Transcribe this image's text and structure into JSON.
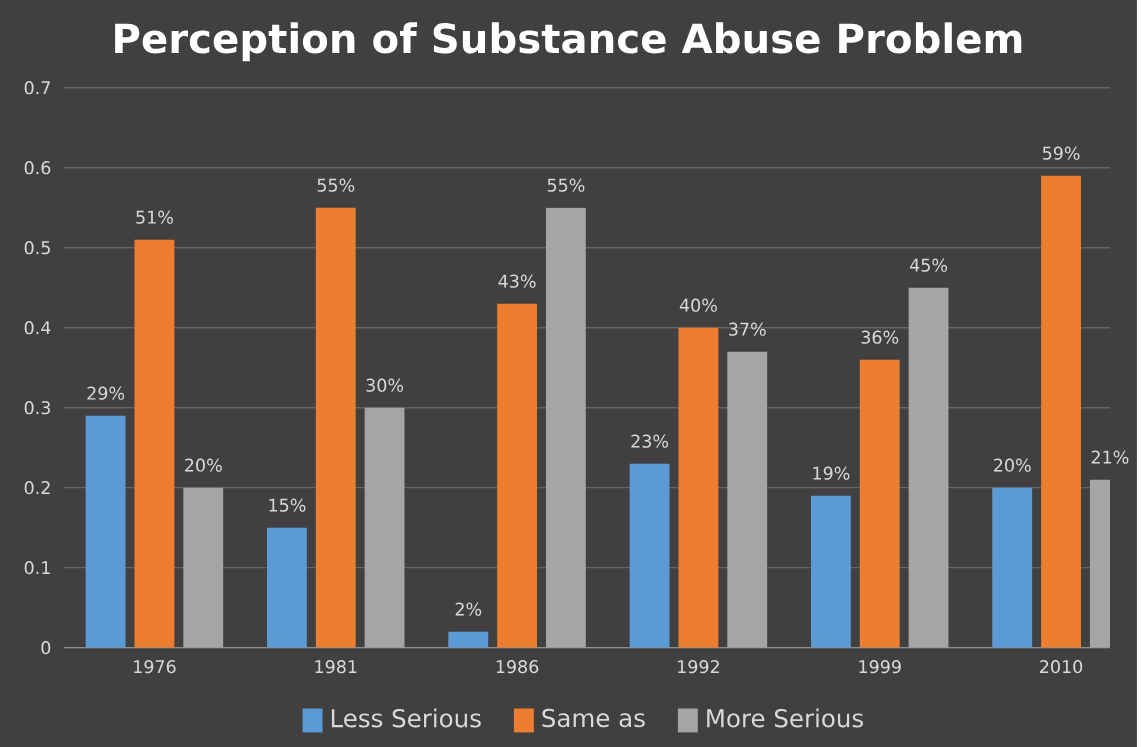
{
  "chart_data": {
    "type": "bar",
    "title": "Perception of Substance Abuse Problem",
    "categories": [
      "1976",
      "1981",
      "1986",
      "1992",
      "1999",
      "2010"
    ],
    "series": [
      {
        "name": "Less Serious",
        "color": "#5b9bd5",
        "values": [
          0.29,
          0.15,
          0.02,
          0.23,
          0.19,
          0.2
        ],
        "value_labels": [
          "29%",
          "15%",
          "2%",
          "23%",
          "19%",
          "20%"
        ]
      },
      {
        "name": "Same as",
        "color": "#ed7d31",
        "values": [
          0.51,
          0.55,
          0.43,
          0.4,
          0.36,
          0.59
        ],
        "value_labels": [
          "51%",
          "55%",
          "43%",
          "40%",
          "36%",
          "59%"
        ]
      },
      {
        "name": "More Serious",
        "color": "#a5a5a5",
        "values": [
          0.2,
          0.3,
          0.55,
          0.37,
          0.45,
          0.21
        ],
        "value_labels": [
          "20%",
          "30%",
          "55%",
          "37%",
          "45%",
          "21%"
        ]
      }
    ],
    "ylim": [
      0,
      0.7
    ],
    "yticks": [
      0,
      0.1,
      0.2,
      0.3,
      0.4,
      0.5,
      0.6,
      0.7
    ],
    "grid": "y",
    "legend": "bottom"
  }
}
